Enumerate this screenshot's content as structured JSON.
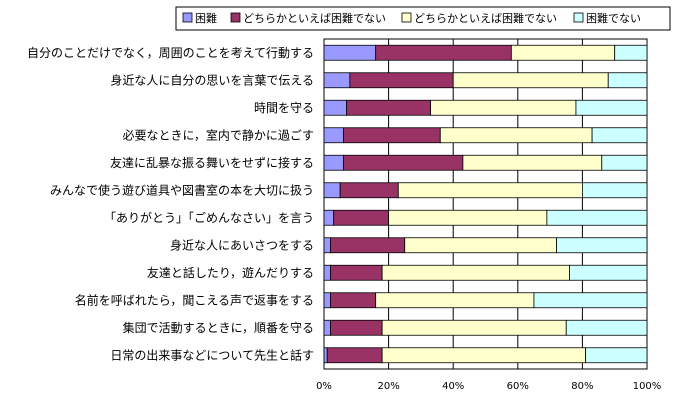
{
  "chart_data": {
    "type": "bar",
    "orientation": "horizontal",
    "stacked": true,
    "percent": true,
    "categories": [
      "自分のことだけでなく，周囲のことを考えて行動する",
      "身近な人に自分の思いを言葉で伝える",
      "時間を守る",
      "必要なときに，室内で静かに過ごす",
      "友達に乱暴な振る舞いをせずに接する",
      "みんなで使う遊び道具や図書室の本を大切に扱う",
      "「ありがとう」「ごめんなさい」を言う",
      "身近な人にあいさつをする",
      "友達と話したり，遊んだりする",
      "名前を呼ばれたら，聞こえる声で返事をする",
      "集団で活動するときに，順番を守る",
      "日常の出来事などについて先生と話す"
    ],
    "series": [
      {
        "name": "困難",
        "color": "#9999FF",
        "values": [
          16,
          8,
          7,
          6,
          6,
          5,
          3,
          2,
          2,
          2,
          2,
          1
        ]
      },
      {
        "name": "どちらかといえば困難でない",
        "color": "#993366",
        "values": [
          42,
          32,
          26,
          30,
          37,
          18,
          17,
          23,
          16,
          14,
          16,
          17
        ]
      },
      {
        "name": "どちらかといえば困難でない",
        "color": "#FFFFCC",
        "values": [
          32,
          48,
          45,
          47,
          43,
          57,
          49,
          47,
          58,
          49,
          57,
          63
        ]
      },
      {
        "name": "困難でない",
        "color": "#CCFFFF",
        "values": [
          10,
          12,
          22,
          17,
          14,
          20,
          31,
          28,
          24,
          35,
          25,
          19
        ]
      }
    ],
    "xlim": [
      0,
      100
    ],
    "ticks": [
      "0%",
      "20%",
      "40%",
      "60%",
      "80%",
      "100%"
    ],
    "grid": true,
    "legend": "top"
  }
}
